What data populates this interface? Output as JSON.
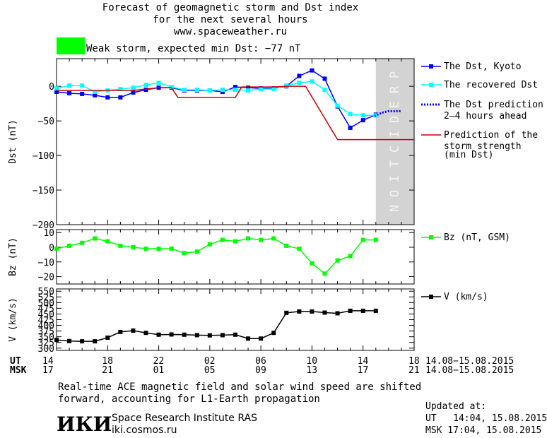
{
  "header": {
    "title_line1": "Forecast of geomagnetic storm and Dst index",
    "title_line2": "for the next several hours",
    "site": "www.spaceweather.ru",
    "storm_label": "Weak storm, expected min Dst: −77 nT",
    "storm_color": "#00ff00"
  },
  "chart_data": [
    {
      "type": "line",
      "ylabel": "Dst (nT)",
      "ylim": [
        -200,
        40
      ],
      "yticks": [
        0,
        -50,
        -100,
        -150,
        -200
      ],
      "ytick_labels": [
        "0",
        "−50",
        "−100",
        "−150",
        "−200"
      ],
      "xlim": [
        14,
        42
      ],
      "prediction_start": 39,
      "prediction_label": "PREDICTION",
      "series": [
        {
          "name": "The Dst, Kyoto",
          "color": "#0000ff",
          "marker": "square",
          "x": [
            14,
            15,
            16,
            17,
            18,
            19,
            20,
            21,
            22,
            23,
            24,
            25,
            26,
            27,
            28,
            29,
            30,
            31,
            32,
            33,
            34,
            35,
            36,
            37,
            38,
            39
          ],
          "y": [
            -8,
            -10,
            -11,
            -13,
            -16,
            -16,
            -9,
            -5,
            -2,
            -2,
            -6,
            -6,
            -6,
            -8,
            -1,
            -2,
            -3,
            -3,
            0,
            15,
            23,
            11,
            -29,
            -60,
            -49,
            -41
          ]
        },
        {
          "name": "The recovered Dst",
          "color": "#00ffff",
          "marker": "square",
          "x": [
            14,
            15,
            16,
            17,
            18,
            19,
            20,
            21,
            22,
            23,
            24,
            25,
            26,
            27,
            28,
            29,
            30,
            31,
            32,
            33,
            34,
            35,
            36,
            37,
            38,
            39
          ],
          "y": [
            -3,
            1,
            1,
            -8,
            -6,
            -4,
            -2,
            2,
            5,
            -1,
            -5,
            -5,
            -6,
            -5,
            -5,
            -6,
            -4,
            -4,
            1,
            5,
            7,
            -5,
            -28,
            -40,
            -42,
            -42
          ]
        },
        {
          "name": "The Dst prediction",
          "name_line2": "2–4 hours ahead",
          "color": "#0000ff",
          "style": "dotted",
          "x": [
            38.9,
            39.5,
            40,
            40.5,
            41
          ],
          "y": [
            -43,
            -38,
            -36,
            -36,
            -36
          ]
        },
        {
          "name": "Prediction of the",
          "name_line2": "storm strength",
          "name_line3": "(min Dst)",
          "color": "#cc0000",
          "style": "step",
          "x": [
            14,
            20,
            22,
            23,
            23.5,
            26,
            27,
            28,
            28.5,
            31,
            32,
            33,
            33.5,
            36,
            36.5,
            42
          ],
          "y": [
            -6,
            -6,
            -2,
            -2,
            -16,
            -16,
            -16,
            -16,
            -1,
            -1,
            0,
            0,
            0,
            -77,
            -77,
            -77
          ]
        }
      ]
    },
    {
      "type": "line",
      "ylabel": "Bz (nT)",
      "ylim": [
        -25,
        12
      ],
      "yticks": [
        10,
        0,
        -10,
        -20
      ],
      "ytick_labels": [
        "10",
        "0",
        "−10",
        "−20"
      ],
      "series": [
        {
          "name": "Bz (nT, GSM)",
          "color": "#00ff00",
          "marker": "square",
          "x": [
            14,
            15,
            16,
            17,
            18,
            19,
            20,
            21,
            22,
            23,
            24,
            25,
            26,
            27,
            28,
            29,
            30,
            31,
            32,
            33,
            34,
            35,
            36,
            37,
            38,
            39
          ],
          "y": [
            -1,
            1,
            3,
            6,
            4,
            1,
            0,
            -1,
            -1,
            -1,
            -4,
            -3,
            2,
            5,
            4,
            6,
            5,
            6,
            1,
            -1,
            -11,
            -18,
            -9,
            -6,
            5,
            5
          ]
        }
      ]
    },
    {
      "type": "line",
      "ylabel": "V (km/s)",
      "ylim": [
        290,
        560
      ],
      "yticks": [
        300,
        325,
        350,
        375,
        400,
        425,
        450,
        475,
        500,
        525,
        550
      ],
      "ytick_labels": [
        "300",
        "",
        "350",
        "",
        "400",
        "",
        "450",
        "",
        "500",
        "",
        "550"
      ],
      "minor_labels": [
        "325",
        "375",
        "425",
        "475",
        "525"
      ],
      "series": [
        {
          "name": "V (km/s)",
          "color": "#000000",
          "marker": "square",
          "x": [
            14,
            15,
            16,
            17,
            18,
            19,
            20,
            21,
            22,
            23,
            24,
            25,
            26,
            27,
            28,
            29,
            30,
            31,
            32,
            33,
            34,
            35,
            36,
            37,
            38,
            39
          ],
          "y": [
            336,
            331,
            330,
            330,
            346,
            371,
            377,
            367,
            359,
            360,
            359,
            357,
            356,
            357,
            359,
            342,
            342,
            367,
            455,
            461,
            461,
            456,
            453,
            464,
            464,
            464
          ]
        }
      ]
    }
  ],
  "xaxis": {
    "ut_label": "UT",
    "msk_label": "MSK",
    "ut_ticks": [
      "14",
      "18",
      "22",
      "02",
      "06",
      "10",
      "14",
      "18"
    ],
    "msk_ticks": [
      "17",
      "21",
      "01",
      "05",
      "09",
      "13",
      "17",
      "21"
    ],
    "date_range": "14.08−15.08.2015"
  },
  "footer": {
    "note_line1": "Real-time ACE magnetic field and solar wind speed are shifted",
    "note_line2": "forward, accounting for L1-Earth propagation",
    "logo_text": "ИКИ",
    "institute": "Space Research Institute RAS",
    "institute_url": "iki.cosmos.ru",
    "updated_label": "Updated at:",
    "updated_ut": "UT   14:04, 15.08.2015",
    "updated_msk": "MSK 17:04, 15.08.2015"
  }
}
